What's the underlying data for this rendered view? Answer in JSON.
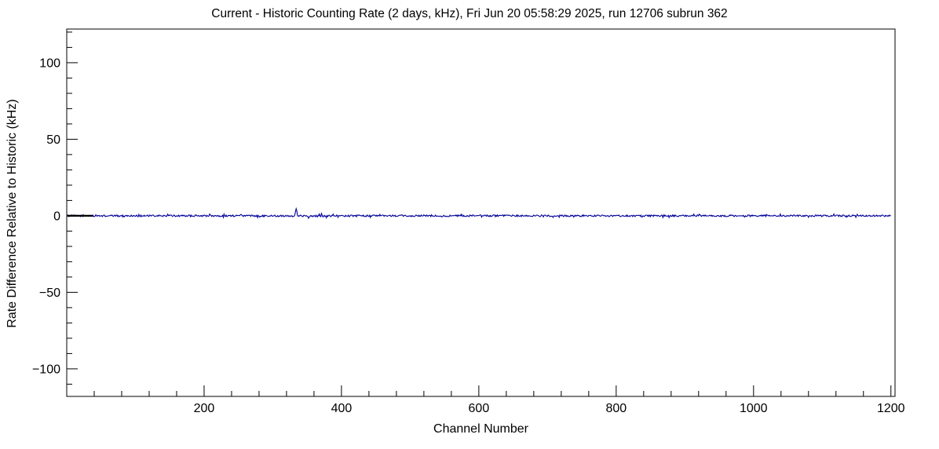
{
  "chart_data": {
    "type": "line",
    "title": "Current - Historic Counting Rate (2 days, kHz), Fri Jun 20 05:58:29 2025, run 12706 subrun 362",
    "xlabel": "Channel Number",
    "ylabel": "Rate Difference Relative to Historic (kHz)",
    "xlim": [
      0,
      1206
    ],
    "ylim": [
      -118,
      122
    ],
    "x_ticks": [
      200,
      400,
      600,
      800,
      1000,
      1200
    ],
    "y_ticks": [
      -100,
      -50,
      0,
      50,
      100
    ],
    "x_minor_step": 40,
    "y_minor_step": 10,
    "grid": false,
    "legend": false,
    "axis_color": "#000000",
    "tick_label_color": "#000000",
    "series": [
      {
        "name": "rate-difference",
        "color": "#000099",
        "baseline": 0,
        "noise_amplitude": 0.55,
        "x_start": 1,
        "x_end": 1200,
        "seed": 1234,
        "anomalies": [
          {
            "x": 333,
            "y": 2.6
          },
          {
            "x": 334,
            "y": 4.6
          },
          {
            "x": 335,
            "y": 3.1
          },
          {
            "x": 352,
            "y": -1.6
          },
          {
            "x": 371,
            "y": 1.5
          },
          {
            "x": 378,
            "y": -1.3
          },
          {
            "x": 388,
            "y": 1.1
          }
        ]
      }
    ],
    "leading_segment": {
      "x_start": 1,
      "x_end": 38,
      "y": 0,
      "color": "#000000"
    }
  }
}
